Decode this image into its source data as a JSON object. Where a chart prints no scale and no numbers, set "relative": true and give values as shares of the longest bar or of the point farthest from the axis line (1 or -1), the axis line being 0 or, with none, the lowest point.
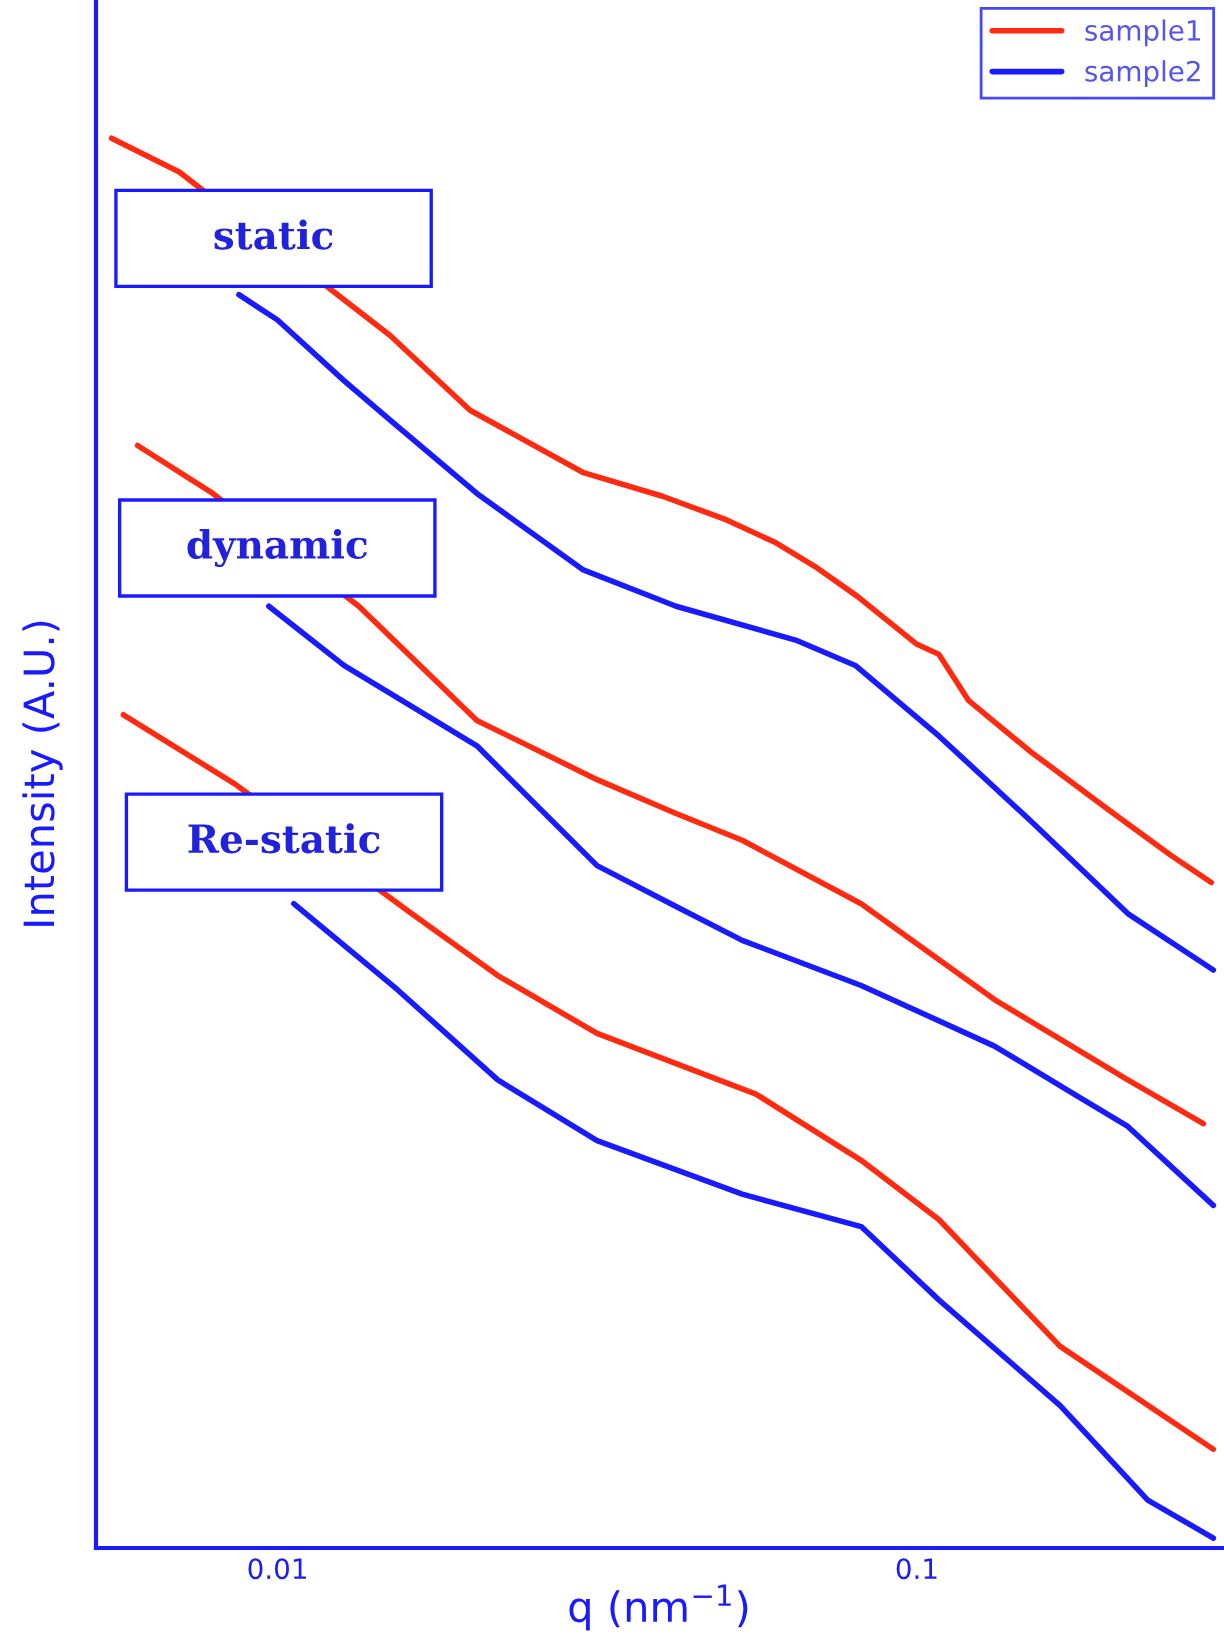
{
  "chart_data": {
    "type": "line",
    "relative": true,
    "log": "x",
    "xlabel": "q (nm$^{−1}$)",
    "ylabel": "Intensity (A.U.)",
    "xlim": [
      0.0052,
      0.3
    ],
    "xticks": [
      0.01,
      0.1
    ],
    "legend": "top right",
    "grid": false,
    "marker": "none",
    "line_style": "solid",
    "annotations": [
      "static",
      "dynamic",
      "Re-static"
    ],
    "series": [
      {
        "name": "sample1",
        "color": "#ff2a10",
        "x": [
          0.0055,
          0.00702,
          0.015,
          0.02,
          0.03,
          0.04,
          0.0499,
          0.0602,
          0.0699,
          0.0807,
          0.1,
          0.1082,
          0.1205,
          0.1504,
          0.2003,
          0.2501,
          0.2887
        ],
        "values": [
          1.0,
          0.976,
          0.86,
          0.807,
          0.763,
          0.746,
          0.73,
          0.713,
          0.695,
          0.675,
          0.641,
          0.634,
          0.601,
          0.565,
          0.523,
          0.491,
          0.472
        ]
      },
      {
        "name": "sample2",
        "color": "#1a1aff",
        "x": [
          0.0087,
          0.01,
          0.0127,
          0.015,
          0.0205,
          0.03,
          0.042,
          0.0646,
          0.0801,
          0.1082,
          0.1504,
          0.2137,
          0.2908
        ],
        "values": [
          0.889,
          0.871,
          0.828,
          0.8,
          0.748,
          0.694,
          0.668,
          0.644,
          0.626,
          0.576,
          0.516,
          0.45,
          0.41
        ]
      },
      {
        "color": "#ff2a10",
        "x": [
          0.00604,
          0.00792,
          0.0134,
          0.0205,
          0.0316,
          0.042,
          0.0533,
          0.0818,
          0.1322,
          0.2137,
          0.2805
        ],
        "values": [
          0.782,
          0.748,
          0.668,
          0.587,
          0.545,
          0.521,
          0.502,
          0.457,
          0.389,
          0.332,
          0.301
        ]
      },
      {
        "color": "#1a1aff",
        "x": [
          0.00969,
          0.0127,
          0.0205,
          0.0316,
          0.042,
          0.0533,
          0.0818,
          0.1322,
          0.1761,
          0.2137,
          0.2908
        ],
        "values": [
          0.668,
          0.626,
          0.569,
          0.484,
          0.455,
          0.431,
          0.399,
          0.356,
          0.322,
          0.299,
          0.243
        ]
      },
      {
        "color": "#ff2a10",
        "x": [
          0.00574,
          0.00857,
          0.0162,
          0.0221,
          0.0316,
          0.056,
          0.0818,
          0.1082,
          0.1675,
          0.2908
        ],
        "values": [
          0.591,
          0.542,
          0.45,
          0.406,
          0.365,
          0.322,
          0.275,
          0.233,
          0.143,
          0.07
        ]
      },
      {
        "color": "#1a1aff",
        "x": [
          0.0106,
          0.0154,
          0.0221,
          0.0316,
          0.0533,
          0.0818,
          0.1082,
          0.1675,
          0.2296,
          0.2908
        ],
        "values": [
          0.457,
          0.396,
          0.332,
          0.289,
          0.251,
          0.228,
          0.176,
          0.101,
          0.034,
          0.007
        ]
      }
    ]
  }
}
